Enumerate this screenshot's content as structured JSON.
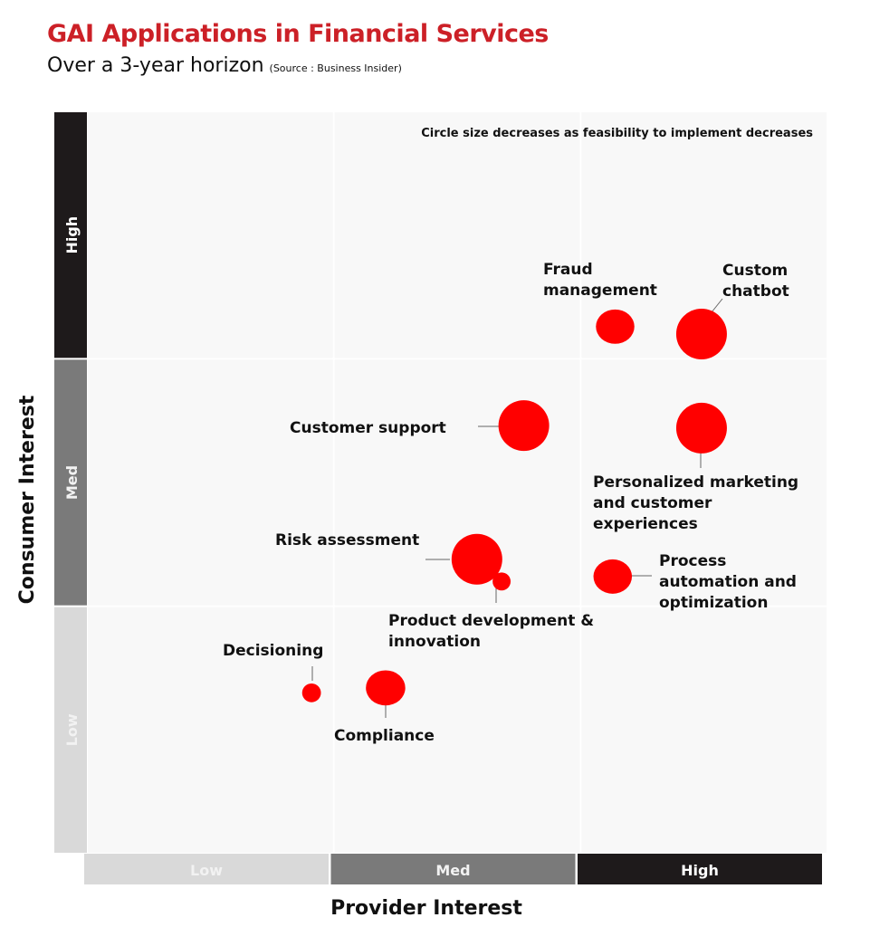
{
  "header": {
    "title": "GAI Applications in Financial Services",
    "subtitle": "Over a 3-year horizon",
    "source": "(Source : Business Insider)"
  },
  "chart_data": {
    "type": "scatter",
    "title": "GAI Applications in Financial Services",
    "subtitle": "Over a 3-year horizon",
    "note": "Circle size decreases as feasibility to implement decreases",
    "xlabel": "Provider Interest",
    "ylabel": "Consumer Interest",
    "x_categories": [
      "Low",
      "Med",
      "High"
    ],
    "y_categories": [
      "Low",
      "Med",
      "High"
    ],
    "xlim": [
      0,
      3
    ],
    "ylim": [
      0,
      3
    ],
    "grid": true,
    "colors": {
      "bubble": "#ff0000",
      "title": "#cc2027",
      "low": "#d9d9d9",
      "med": "#7a7a7a",
      "high": "#1e1a1b"
    },
    "points": [
      {
        "name": "Fraud management",
        "lines": [
          "Fraud",
          "management"
        ],
        "x": 2.14,
        "y": 2.13,
        "size": 0.42
      },
      {
        "name": "Custom chatbot",
        "lines": [
          "Custom",
          "chatbot"
        ],
        "x": 2.49,
        "y": 2.1,
        "size": 0.62
      },
      {
        "name": "Customer support",
        "lines": [
          "Customer support"
        ],
        "x": 1.77,
        "y": 1.73,
        "size": 0.62
      },
      {
        "name": "Personalized marketing and customer experiences",
        "lines": [
          "Personalized marketing",
          "and customer",
          "experiences"
        ],
        "x": 2.49,
        "y": 1.72,
        "size": 0.62
      },
      {
        "name": "Risk assessment",
        "lines": [
          "Risk assessment"
        ],
        "x": 1.58,
        "y": 1.19,
        "size": 0.62
      },
      {
        "name": "Product development & innovation",
        "lines": [
          "Product development &",
          "innovation"
        ],
        "x": 1.68,
        "y": 1.1,
        "size": 0.22
      },
      {
        "name": "Process automation and optimization",
        "lines": [
          "Process",
          "automation and",
          "optimization"
        ],
        "x": 2.13,
        "y": 1.12,
        "size": 0.42
      },
      {
        "name": "Decisioning",
        "lines": [
          "Decisioning"
        ],
        "x": 0.91,
        "y": 0.65,
        "size": 0.23
      },
      {
        "name": "Compliance",
        "lines": [
          "Compliance"
        ],
        "x": 1.21,
        "y": 0.67,
        "size": 0.43
      }
    ]
  }
}
